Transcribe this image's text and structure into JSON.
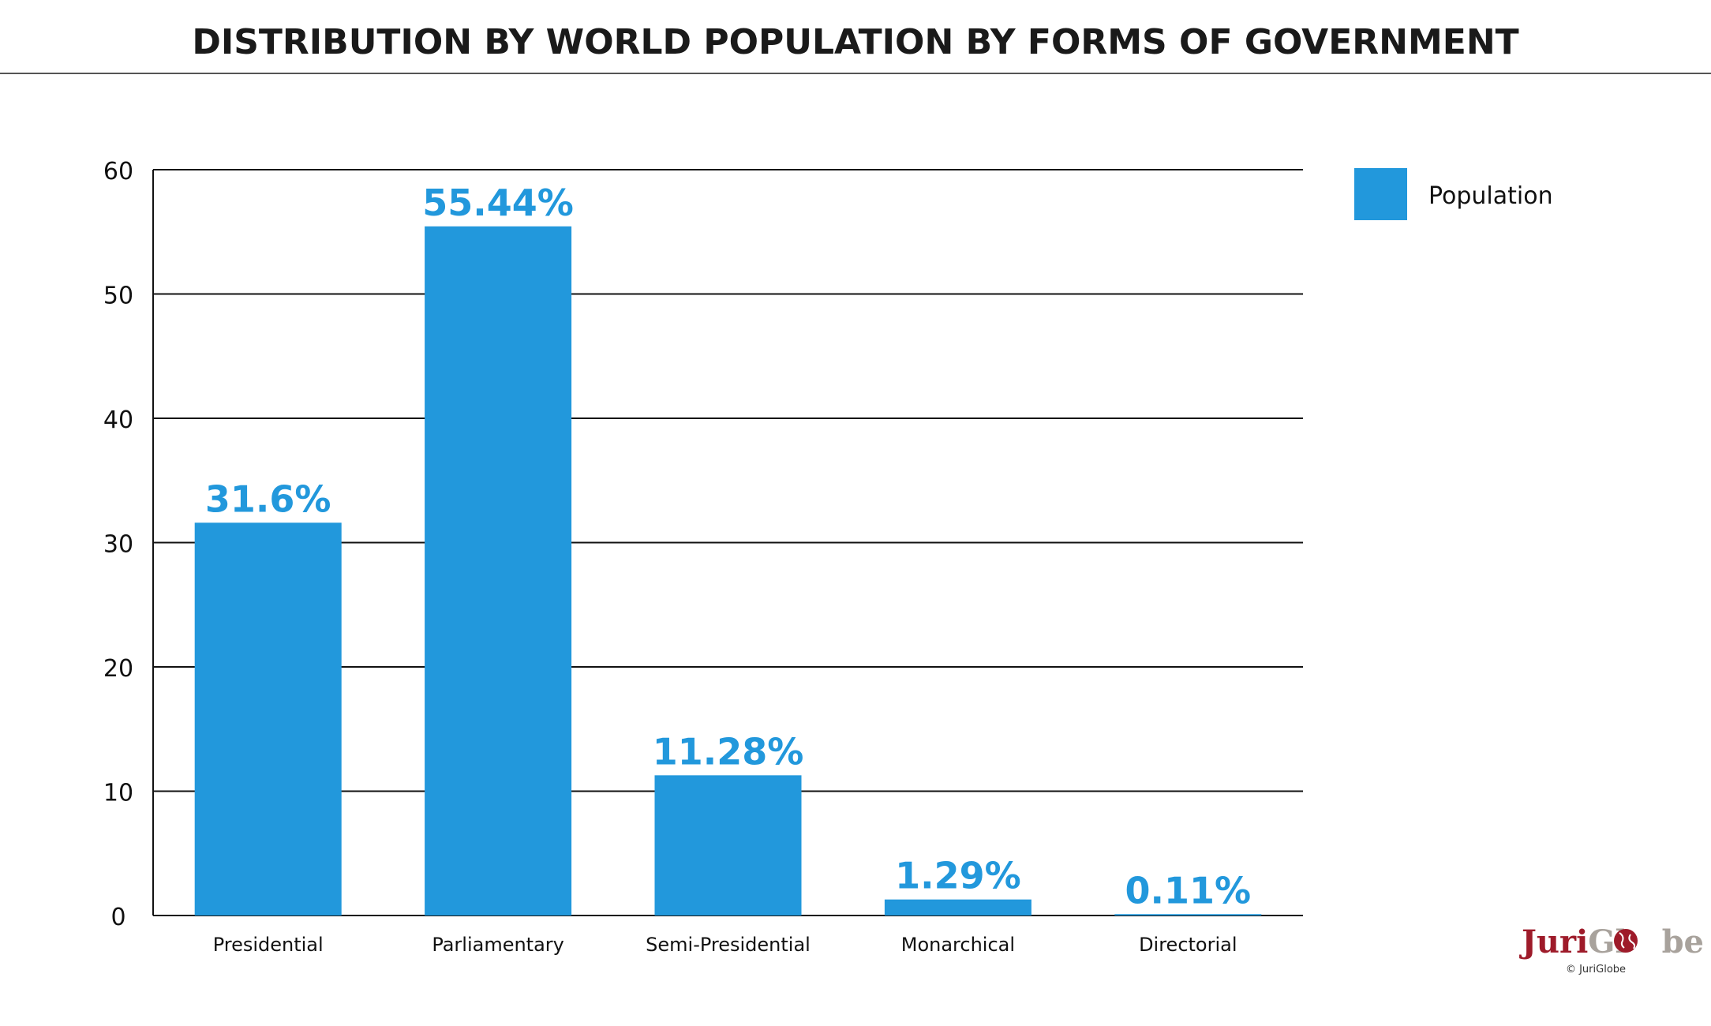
{
  "title": "DISTRIBUTION BY WORLD POPULATION BY FORMS OF GOVERNMENT",
  "colors": {
    "bar": "#2298dc",
    "value_label": "#2298dc",
    "grid": "#111111",
    "brand_red": "#9e1b2a",
    "brand_gray": "#a8a29c"
  },
  "chart_data": {
    "type": "bar",
    "categories": [
      "Presidential",
      "Parliamentary",
      "Semi-Presidential",
      "Monarchical",
      "Directorial"
    ],
    "series": [
      {
        "name": "Population",
        "values": [
          31.6,
          55.44,
          11.28,
          1.29,
          0.11
        ],
        "data_labels": [
          "31.6%",
          "55.44%",
          "11.28%",
          "1.29%",
          "0.11%"
        ]
      }
    ],
    "ylim": [
      0,
      60
    ],
    "yticks": [
      "0",
      "10",
      "20",
      "30",
      "40",
      "50",
      "60"
    ],
    "grid": true,
    "legend_position": "right",
    "xlabel": "",
    "ylabel": ""
  },
  "legend": {
    "label": "Population"
  },
  "branding": {
    "logo_part1": "Juri",
    "logo_part2": "Gl",
    "logo_part3": "be",
    "copyright": "© JuriGlobe"
  }
}
